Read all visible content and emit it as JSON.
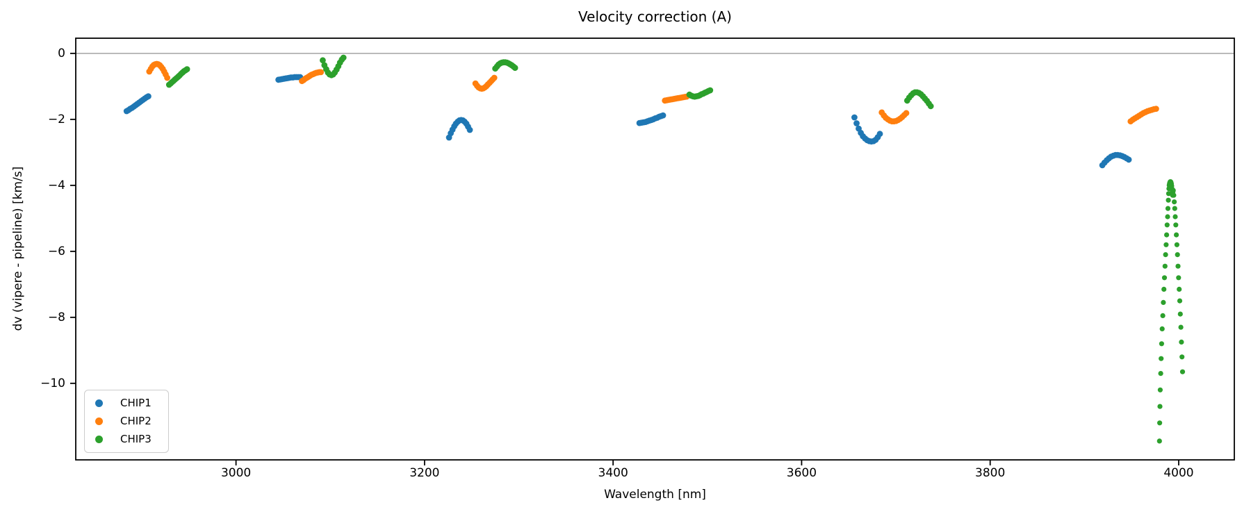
{
  "chart_data": {
    "type": "scatter",
    "title": "Velocity correction (A)",
    "xlabel": "Wavelength [nm]",
    "ylabel": "dv (vipere - pipeline) [km/s]",
    "xlim": [
      2830,
      4059
    ],
    "ylim": [
      -12.32,
      0.46
    ],
    "x_ticks": [
      3000,
      3200,
      3400,
      3600,
      3800,
      4000
    ],
    "y_ticks": [
      0,
      -2,
      -4,
      -6,
      -8,
      -10
    ],
    "grid": false,
    "zero_line": {
      "y": 0,
      "color": "#909090"
    },
    "legend_position": "lower-left",
    "axis_color": "#000000",
    "series": [
      {
        "name": "CHIP1",
        "color": "#1f77b4",
        "segments": [
          {
            "x": [
              2884,
              2885.9,
              2887.8,
              2889.8,
              2891.7,
              2893.6,
              2895.5,
              2897.4,
              2899.3,
              2901.2,
              2903.2,
              2905.1,
              2907
            ],
            "y": [
              -1.75,
              -1.72,
              -1.68,
              -1.65,
              -1.61,
              -1.57,
              -1.53,
              -1.49,
              -1.45,
              -1.41,
              -1.37,
              -1.33,
              -1.3
            ]
          },
          {
            "x": [
              3045,
              3046.9,
              3048.8,
              3050.8,
              3052.7,
              3054.6,
              3056.5,
              3058.4,
              3060.3,
              3062.3,
              3064.2,
              3066.1,
              3068
            ],
            "y": [
              -0.8,
              -0.79,
              -0.78,
              -0.77,
              -0.76,
              -0.75,
              -0.74,
              -0.73,
              -0.73,
              -0.72,
              -0.72,
              -0.72,
              -0.72
            ]
          },
          {
            "x": [
              3226,
              3227.8,
              3229.7,
              3231.5,
              3233.3,
              3235.2,
              3237,
              3238.8,
              3240.7,
              3242.5,
              3244.3,
              3246.2,
              3248
            ],
            "y": [
              -2.55,
              -2.42,
              -2.31,
              -2.21,
              -2.13,
              -2.07,
              -2.03,
              -2.02,
              -2.03,
              -2.07,
              -2.13,
              -2.22,
              -2.32
            ]
          },
          {
            "x": [
              3428,
              3430.1,
              3432.2,
              3434.3,
              3436.3,
              3438.4,
              3440.5,
              3442.6,
              3444.7,
              3446.8,
              3448.9,
              3450.9,
              3453
            ],
            "y": [
              -2.11,
              -2.1,
              -2.09,
              -2.08,
              -2.06,
              -2.04,
              -2.02,
              -2.0,
              -1.97,
              -1.95,
              -1.92,
              -1.9,
              -1.88
            ]
          },
          {
            "x": [
              3656,
              3658.3,
              3660.5,
              3662.8,
              3665,
              3667.3,
              3669.5,
              3671.8,
              3674,
              3676.3,
              3678.5,
              3680.8,
              3683
            ],
            "y": [
              -1.94,
              -2.12,
              -2.28,
              -2.41,
              -2.51,
              -2.58,
              -2.63,
              -2.66,
              -2.67,
              -2.66,
              -2.62,
              -2.54,
              -2.44
            ]
          },
          {
            "x": [
              3919,
              3921.3,
              3923.7,
              3926,
              3928.3,
              3930.7,
              3933,
              3935.3,
              3937.7,
              3940,
              3942.3,
              3944.7,
              3947
            ],
            "y": [
              -3.39,
              -3.31,
              -3.24,
              -3.18,
              -3.13,
              -3.1,
              -3.08,
              -3.08,
              -3.09,
              -3.11,
              -3.14,
              -3.18,
              -3.22
            ]
          }
        ]
      },
      {
        "name": "CHIP2",
        "color": "#ff7f0e",
        "segments": [
          {
            "x": [
              2908,
              2909.6,
              2911.2,
              2912.8,
              2914.3,
              2915.9,
              2917.5,
              2919.1,
              2920.7,
              2922.3,
              2923.8,
              2925.4,
              2927
            ],
            "y": [
              -0.55,
              -0.47,
              -0.4,
              -0.35,
              -0.33,
              -0.32,
              -0.33,
              -0.36,
              -0.41,
              -0.47,
              -0.55,
              -0.64,
              -0.74
            ]
          },
          {
            "x": [
              3070,
              3071.7,
              3073.3,
              3075,
              3076.7,
              3078.3,
              3080,
              3081.7,
              3083.3,
              3085,
              3086.7,
              3088.3,
              3090
            ],
            "y": [
              -0.84,
              -0.81,
              -0.77,
              -0.74,
              -0.71,
              -0.68,
              -0.65,
              -0.63,
              -0.61,
              -0.59,
              -0.58,
              -0.57,
              -0.57
            ]
          },
          {
            "x": [
              3254,
              3255.7,
              3257.3,
              3259,
              3260.7,
              3262.3,
              3264,
              3265.7,
              3267.3,
              3269,
              3270.7,
              3272.3,
              3274
            ],
            "y": [
              -0.91,
              -0.98,
              -1.03,
              -1.06,
              -1.07,
              -1.06,
              -1.03,
              -0.99,
              -0.94,
              -0.89,
              -0.84,
              -0.79,
              -0.74
            ]
          },
          {
            "x": [
              3455,
              3456.9,
              3458.8,
              3460.8,
              3462.7,
              3464.6,
              3466.5,
              3468.4,
              3470.3,
              3472.3,
              3474.2,
              3476.1,
              3478
            ],
            "y": [
              -1.43,
              -1.42,
              -1.41,
              -1.4,
              -1.39,
              -1.38,
              -1.37,
              -1.36,
              -1.35,
              -1.34,
              -1.33,
              -1.32,
              -1.31
            ]
          },
          {
            "x": [
              3685,
              3687.2,
              3689.3,
              3691.5,
              3693.7,
              3695.8,
              3698,
              3700.2,
              3702.3,
              3704.5,
              3706.7,
              3708.8,
              3711
            ],
            "y": [
              -1.79,
              -1.88,
              -1.95,
              -2.0,
              -2.04,
              -2.06,
              -2.06,
              -2.05,
              -2.02,
              -1.98,
              -1.93,
              -1.87,
              -1.81
            ]
          },
          {
            "x": [
              3949,
              3951.3,
              3953.5,
              3955.8,
              3958,
              3960.3,
              3962.5,
              3964.8,
              3967,
              3969.3,
              3971.5,
              3973.8,
              3976
            ],
            "y": [
              -2.06,
              -2.01,
              -1.97,
              -1.93,
              -1.89,
              -1.85,
              -1.81,
              -1.78,
              -1.75,
              -1.73,
              -1.71,
              -1.69,
              -1.68
            ]
          }
        ]
      },
      {
        "name": "CHIP3",
        "color": "#2ca02c",
        "segments": [
          {
            "x": [
              2929,
              2930.6,
              2932.2,
              2933.8,
              2935.3,
              2936.9,
              2938.5,
              2940.1,
              2941.7,
              2943.3,
              2944.8,
              2946.4,
              2948
            ],
            "y": [
              -0.95,
              -0.91,
              -0.87,
              -0.83,
              -0.79,
              -0.75,
              -0.71,
              -0.67,
              -0.62,
              -0.58,
              -0.54,
              -0.51,
              -0.48
            ]
          },
          {
            "x": [
              3092,
              3093.8,
              3095.7,
              3097.5,
              3099.3,
              3101.2,
              3103,
              3104.8,
              3106.7,
              3108.5,
              3110.3,
              3112.2,
              3114
            ],
            "y": [
              -0.21,
              -0.36,
              -0.48,
              -0.58,
              -0.64,
              -0.66,
              -0.64,
              -0.58,
              -0.49,
              -0.39,
              -0.28,
              -0.19,
              -0.13
            ]
          },
          {
            "x": [
              3275,
              3276.8,
              3278.5,
              3280.3,
              3282,
              3283.8,
              3285.5,
              3287.3,
              3289,
              3290.8,
              3292.5,
              3294.3,
              3296
            ],
            "y": [
              -0.46,
              -0.4,
              -0.34,
              -0.3,
              -0.28,
              -0.27,
              -0.27,
              -0.28,
              -0.3,
              -0.33,
              -0.36,
              -0.4,
              -0.44
            ]
          },
          {
            "x": [
              3481,
              3482.8,
              3484.7,
              3486.5,
              3488.3,
              3490.2,
              3492,
              3493.8,
              3495.7,
              3497.5,
              3499.3,
              3501.2,
              3503
            ],
            "y": [
              -1.25,
              -1.28,
              -1.3,
              -1.31,
              -1.3,
              -1.29,
              -1.27,
              -1.24,
              -1.22,
              -1.19,
              -1.17,
              -1.14,
              -1.12
            ]
          },
          {
            "x": [
              3712,
              3714.1,
              3716.2,
              3718.3,
              3720.3,
              3722.4,
              3724.5,
              3726.6,
              3728.7,
              3730.8,
              3732.9,
              3734.9,
              3737
            ],
            "y": [
              -1.43,
              -1.34,
              -1.27,
              -1.21,
              -1.18,
              -1.18,
              -1.2,
              -1.24,
              -1.3,
              -1.37,
              -1.44,
              -1.52,
              -1.6
            ]
          },
          {
            "sparse": true,
            "x": [
              3979.6,
              3979.8,
              3980.1,
              3980.4,
              3980.9,
              3981.4,
              3981.9,
              3982.5,
              3983.1,
              3983.7,
              3984.3,
              3984.9,
              3985.5,
              3986.1,
              3986.7,
              3987.2,
              3987.7,
              3988.2,
              3988.6,
              3989.0,
              3989.3,
              3989.6,
              3989.9,
              3990.2,
              3990.5,
              3990.8,
              3991.1,
              3991.4,
              3991.7,
              3992.0,
              3992.3,
              3992.6,
              3992.9,
              3993.2,
              3993.5,
              3993.9,
              3994.3,
              3994.8,
              3995.3,
              3995.8,
              3996.3,
              3996.9,
              3997.5,
              3998.1,
              3998.7,
              3999.3,
              3999.9,
              4000.5,
              4001.1,
              4001.7,
              4002.3,
              4002.9,
              4003.5,
              4004.1
            ],
            "y": [
              -11.75,
              -11.2,
              -10.7,
              -10.2,
              -9.7,
              -9.25,
              -8.8,
              -8.35,
              -7.95,
              -7.55,
              -7.15,
              -6.8,
              -6.45,
              -6.1,
              -5.8,
              -5.5,
              -5.2,
              -4.95,
              -4.7,
              -4.45,
              -4.25,
              -4.1,
              -4.0,
              -3.95,
              -3.92,
              -3.9,
              -3.89,
              -3.89,
              -3.9,
              -3.92,
              -3.96,
              -4.02,
              -4.1,
              -4.2,
              -4.3,
              -4.2,
              -4.15,
              -4.3,
              -4.5,
              -4.7,
              -4.95,
              -5.2,
              -5.5,
              -5.8,
              -6.1,
              -6.45,
              -6.8,
              -7.15,
              -7.5,
              -7.9,
              -8.3,
              -8.75,
              -9.2,
              -9.65
            ]
          }
        ]
      }
    ]
  }
}
